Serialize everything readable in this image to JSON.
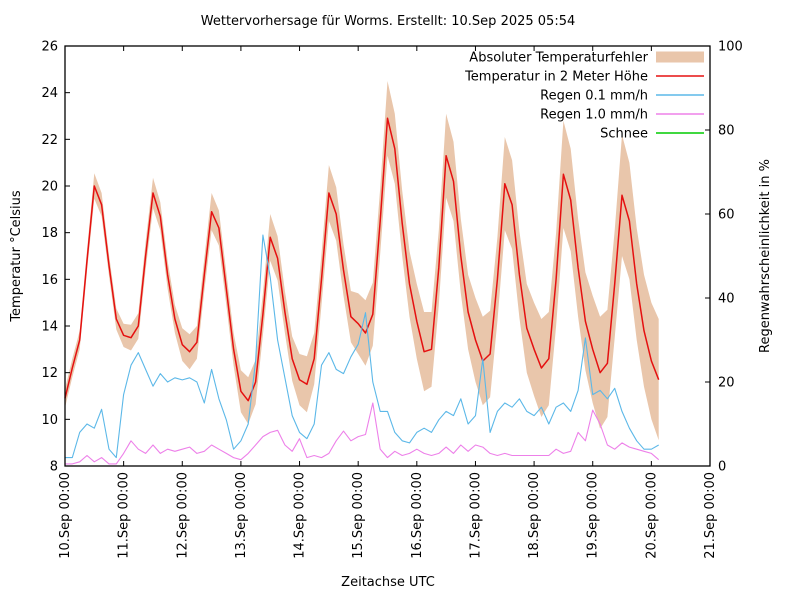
{
  "title": "Wettervorhersage für Worms. Erstellt: 10.Sep 2025 05:54",
  "xlabel": "Zeitachse UTC",
  "ylabel_left": "Temperatur °Celsius",
  "ylabel_right": "Regenwahrscheinlichkeit in %",
  "colors": {
    "background": "#ffffff",
    "axis": "#000000",
    "error_band": "#e9c6ab",
    "temperature": "#e51010",
    "rain01": "#5cb8e8",
    "rain10": "#ed80e9",
    "schnee": "#00cc00"
  },
  "chart_data": {
    "type": "line",
    "title": "Wettervorhersage für Worms. Erstellt: 10.Sep 2025 05:54",
    "xlabel": "Zeitachse UTC",
    "x_start": "10.Sep 00:00",
    "x_step_hours": 3,
    "x_span_hours": 264,
    "x_ticks": [
      "10.Sep 00:00",
      "11.Sep 00:00",
      "12.Sep 00:00",
      "13.Sep 00:00",
      "14.Sep 00:00",
      "15.Sep 00:00",
      "16.Sep 00:00",
      "17.Sep 00:00",
      "18.Sep 00:00",
      "19.Sep 00:00",
      "20.Sep 00:00",
      "21.Sep 00:00"
    ],
    "grid": false,
    "legend_position": "upper right",
    "y_left": {
      "label": "Temperatur °Celsius",
      "range": [
        8,
        26
      ],
      "ticks": [
        8,
        10,
        12,
        14,
        16,
        18,
        20,
        22,
        24,
        26
      ]
    },
    "y_right": {
      "label": "Regenwahrscheinlichkeit in %",
      "range": [
        0,
        100
      ],
      "ticks": [
        0,
        20,
        40,
        60,
        80,
        100
      ]
    },
    "series": [
      {
        "name": "Absoluter Temperaturfehler",
        "type": "band",
        "axis": "left",
        "color": "#e9c6ab",
        "half_width": [
          0.4,
          0.4,
          0.4,
          0.45,
          0.55,
          0.5,
          0.45,
          0.45,
          0.5,
          0.55,
          0.55,
          0.6,
          0.65,
          0.6,
          0.6,
          0.6,
          0.7,
          0.75,
          0.7,
          0.7,
          0.8,
          0.75,
          0.7,
          0.7,
          0.9,
          1.0,
          0.95,
          0.9,
          1.0,
          0.95,
          0.9,
          0.95,
          1.1,
          1.2,
          1.1,
          1.1,
          1.2,
          1.15,
          1.1,
          1.1,
          1.3,
          1.4,
          1.35,
          1.4,
          1.6,
          1.5,
          1.4,
          1.4,
          1.6,
          1.7,
          1.6,
          1.6,
          1.8,
          1.7,
          1.6,
          1.6,
          1.8,
          1.9,
          1.85,
          1.8,
          2.0,
          1.9,
          1.85,
          1.9,
          2.0,
          2.1,
          2.0,
          2.0,
          2.3,
          2.2,
          2.1,
          2.1,
          2.3,
          2.4,
          2.3,
          2.3,
          2.6,
          2.5,
          2.4,
          2.4,
          2.5,
          2.6
        ]
      },
      {
        "name": "Temperatur in 2 Meter Höhe",
        "type": "line",
        "axis": "left",
        "color": "#e51010",
        "values": [
          10.9,
          12.2,
          13.4,
          16.8,
          20.0,
          19.2,
          16.6,
          14.3,
          13.6,
          13.5,
          14.0,
          17.0,
          19.7,
          18.7,
          16.2,
          14.3,
          13.2,
          12.9,
          13.3,
          16.2,
          18.9,
          18.2,
          15.6,
          13.0,
          11.2,
          10.8,
          11.6,
          14.5,
          17.8,
          16.9,
          14.6,
          12.6,
          11.7,
          11.5,
          12.6,
          16.0,
          19.7,
          18.8,
          16.4,
          14.4,
          14.1,
          13.7,
          14.5,
          18.5,
          22.9,
          21.6,
          18.4,
          15.8,
          14.2,
          12.9,
          13.0,
          16.5,
          21.3,
          20.2,
          17.0,
          14.6,
          13.4,
          12.5,
          12.8,
          16.0,
          20.1,
          19.2,
          16.2,
          13.9,
          13.0,
          12.2,
          12.6,
          16.0,
          20.5,
          19.4,
          16.5,
          14.2,
          13.0,
          12.0,
          12.4,
          15.8,
          19.6,
          18.5,
          15.8,
          13.8,
          12.5,
          11.7
        ]
      },
      {
        "name": "Regen 0.1 mm/h",
        "type": "line",
        "axis": "right",
        "color": "#5cb8e8",
        "values": [
          2,
          2,
          8,
          10,
          9,
          13.5,
          4,
          2,
          17,
          24,
          27,
          23,
          19,
          22,
          20,
          21,
          20.5,
          21,
          20,
          15,
          23,
          16,
          11,
          4,
          6,
          10,
          25,
          55,
          45,
          30,
          21,
          12,
          8,
          6.5,
          10,
          24,
          27,
          23,
          22,
          26,
          29,
          36.5,
          20,
          13,
          13,
          8,
          6,
          5.5,
          8,
          9,
          8,
          11,
          13,
          12,
          16,
          10,
          12,
          25.5,
          8,
          13,
          15,
          14,
          16,
          13,
          12,
          14,
          10,
          14,
          15,
          13,
          18,
          30.5,
          17,
          18,
          16,
          18.5,
          13,
          9,
          6,
          4,
          4,
          5
        ]
      },
      {
        "name": "Regen 1.0 mm/h",
        "type": "line",
        "axis": "right",
        "color": "#ed80e9",
        "values": [
          0.5,
          0.5,
          1,
          2.5,
          1,
          2,
          0.5,
          0.5,
          3,
          6,
          4,
          3,
          5,
          3,
          4,
          3.5,
          4,
          4.5,
          3,
          3.5,
          5,
          4,
          3,
          2,
          1.5,
          3,
          5,
          7,
          8,
          8.5,
          5,
          3.5,
          6.5,
          2,
          2.5,
          2,
          3,
          6,
          8.3,
          6,
          7,
          7.5,
          15,
          4,
          2,
          3.5,
          2.5,
          3,
          4,
          3,
          2.5,
          3,
          4.5,
          3,
          5,
          3.5,
          5,
          4.5,
          3,
          2.5,
          3,
          2.5,
          2.5,
          2.5,
          2.5,
          2.5,
          2.5,
          4,
          3,
          3.5,
          8,
          6,
          13.3,
          10,
          5,
          4,
          5.5,
          4.5,
          4,
          3.5,
          3,
          1.5
        ]
      },
      {
        "name": "Schnee",
        "type": "line",
        "axis": "right",
        "color": "#00cc00",
        "values": []
      }
    ]
  }
}
